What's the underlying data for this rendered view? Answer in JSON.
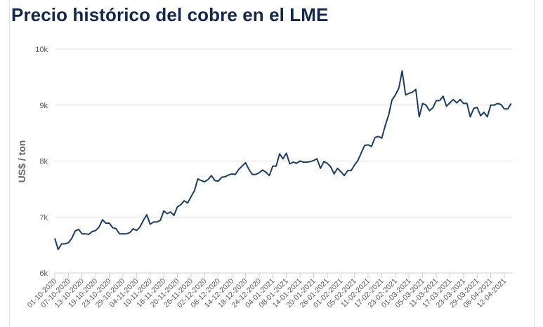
{
  "title": "Precio histórico del cobre en el LME",
  "colors": {
    "line": "#1c3d63",
    "title": "#14284b",
    "grid": "#e0e0e0",
    "axis": "#c8d2dc",
    "text": "#555555"
  },
  "chart_data": {
    "type": "line",
    "title": "Precio histórico del cobre en el LME",
    "xlabel": "",
    "ylabel": "US$ / ton",
    "ylim": [
      6000,
      10000
    ],
    "yticks": [
      6000,
      7000,
      8000,
      9000,
      10000
    ],
    "ytick_labels": [
      "6k",
      "7k",
      "8k",
      "9k",
      "10k"
    ],
    "grid": true,
    "legend": "none",
    "xtick_labels": [
      "01-10-2020",
      "07-10-2020",
      "13-10-2020",
      "19-10-2020",
      "23-10-2020",
      "29-10-2020",
      "04-11-2020",
      "10-11-2020",
      "16-11-2020",
      "20-11-2020",
      "26-11-2020",
      "02-12-2020",
      "08-12-2020",
      "14-12-2020",
      "18-12-2020",
      "24-12-2020",
      "04-01-2021",
      "08-01-2021",
      "14-01-2021",
      "20-01-2021",
      "26-01-2021",
      "01-02-2021",
      "05-02-2021",
      "11-02-2021",
      "17-02-2021",
      "23-02-2021",
      "01-03-2021",
      "05-03-2021",
      "11-03-2021",
      "17-03-2021",
      "23-03-2021",
      "29-03-2021",
      "06-04-2021",
      "12-04-2021"
    ],
    "xtick_every": 4,
    "values": [
      6620,
      6420,
      6520,
      6520,
      6540,
      6620,
      6750,
      6780,
      6700,
      6700,
      6690,
      6740,
      6760,
      6820,
      6950,
      6890,
      6890,
      6810,
      6790,
      6700,
      6700,
      6700,
      6720,
      6790,
      6760,
      6820,
      6940,
      7040,
      6870,
      6910,
      6910,
      6940,
      7110,
      7060,
      7090,
      7030,
      7180,
      7220,
      7290,
      7250,
      7360,
      7470,
      7680,
      7650,
      7630,
      7670,
      7740,
      7650,
      7640,
      7710,
      7720,
      7750,
      7770,
      7760,
      7850,
      7910,
      7970,
      7850,
      7760,
      7760,
      7790,
      7840,
      7800,
      7740,
      7910,
      7910,
      8130,
      8040,
      8140,
      7950,
      7980,
      7960,
      8000,
      7980,
      7980,
      7990,
      8010,
      8040,
      7870,
      7990,
      7960,
      7900,
      7770,
      7870,
      7810,
      7740,
      7830,
      7830,
      7930,
      8010,
      8150,
      8280,
      8290,
      8260,
      8420,
      8440,
      8410,
      8630,
      8820,
      9090,
      9180,
      9300,
      9610,
      9180,
      9210,
      9230,
      9280,
      8790,
      9030,
      9000,
      8900,
      8950,
      9080,
      9080,
      9160,
      8980,
      9040,
      9100,
      9040,
      9100,
      9030,
      9030,
      8790,
      8940,
      8960,
      8810,
      8870,
      8790,
      9000,
      9000,
      9030,
      9010,
      8930,
      8930,
      9030
    ]
  }
}
